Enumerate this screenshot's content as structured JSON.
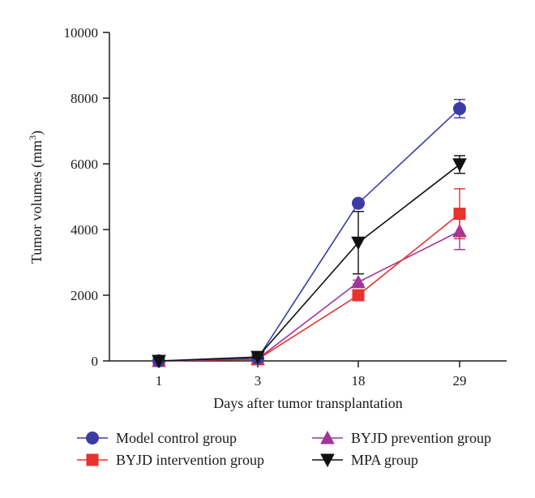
{
  "chart_data": {
    "type": "line",
    "title": "",
    "xlabel": "Days after tumor transplantation",
    "ylabel_main": "Tumor volumes (mm",
    "ylabel_sup": "3",
    "ylabel_close": ")",
    "categories": [
      "1",
      "3",
      "18",
      "29"
    ],
    "ylim": [
      0,
      10000
    ],
    "yticks": [
      0,
      2000,
      4000,
      6000,
      8000,
      10000
    ],
    "ytick_labels": [
      "0",
      "2000",
      "4000",
      "6000",
      "8000",
      "10000"
    ],
    "grid": false,
    "legend_position": "bottom",
    "series": [
      {
        "name": "Model control group",
        "color": "#3b3ba8",
        "marker": "circle",
        "values": [
          0,
          80,
          4800,
          7680
        ],
        "errors": [
          0,
          40,
          80,
          280
        ]
      },
      {
        "name": "BYJD intervention group",
        "color": "#e8322e",
        "marker": "square",
        "values": [
          0,
          50,
          2000,
          4480
        ],
        "errors": [
          0,
          30,
          80,
          760
        ]
      },
      {
        "name": "BYJD prevention group",
        "color": "#a2359c",
        "marker": "triangle-up",
        "values": [
          0,
          60,
          2400,
          3950
        ],
        "errors": [
          0,
          30,
          60,
          560
        ]
      },
      {
        "name": "MPA group",
        "color": "#111111",
        "marker": "triangle-down",
        "values": [
          0,
          120,
          3600,
          5980
        ],
        "errors": [
          0,
          40,
          950,
          270
        ]
      }
    ]
  }
}
